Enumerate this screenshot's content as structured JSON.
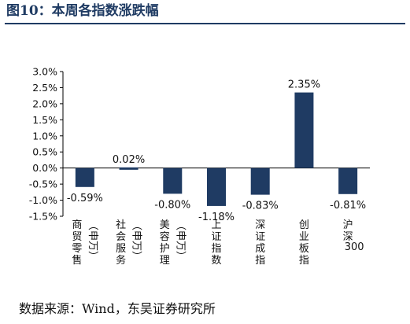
{
  "title": "图10：本周各指数涨跌幅",
  "source": "数据来源：Wind，东吴证券研究所",
  "chart_data": {
    "type": "bar",
    "title": "",
    "xlabel": "",
    "ylabel": "",
    "categories": [
      "商贸零售（申万）",
      "社会服务（申万）",
      "美容护理（申万）",
      "上证指数",
      "深证成指",
      "创业板指",
      "沪深300"
    ],
    "values": [
      -0.59,
      0.02,
      -0.8,
      -1.18,
      -0.83,
      2.35,
      -0.81
    ],
    "value_labels": [
      "-0.59%",
      "0.02%",
      "-0.80%",
      "-1.18%",
      "-0.83%",
      "2.35%",
      "-0.81%"
    ],
    "ylim": [
      -1.5,
      3.0
    ],
    "yticks": [
      3.0,
      2.5,
      2.0,
      1.5,
      1.0,
      0.5,
      0.0,
      -0.5,
      -1.0,
      -1.5
    ],
    "ytick_labels": [
      "3.0%",
      "2.5%",
      "2.0%",
      "1.5%",
      "1.0%",
      "0.5%",
      "0.0%",
      "-0.5%",
      "-1.0%",
      "-1.5%"
    ],
    "grid": false,
    "legend": "none",
    "bar_color": "#1f3b63",
    "axis_color": "#000000"
  }
}
